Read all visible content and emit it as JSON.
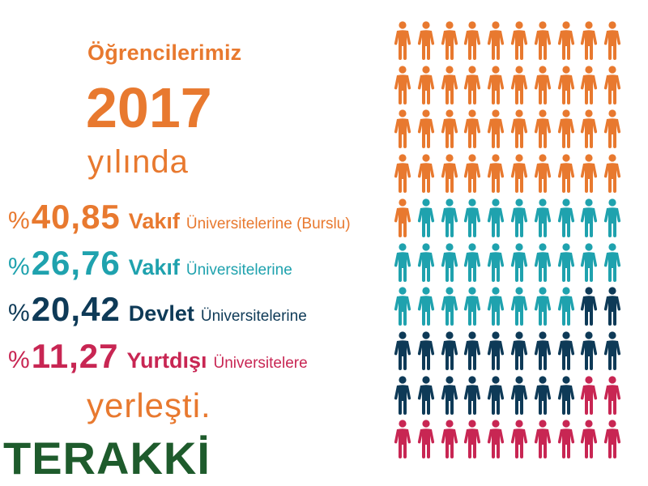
{
  "header": {
    "title": "Öğrencilerimiz",
    "year": "2017",
    "year_suffix": "yılında"
  },
  "stats": [
    {
      "sign": "%",
      "value": "40,85",
      "type": "Vakıf",
      "desc": "Üniversitelerine (Burslu)",
      "color": "#e8792f"
    },
    {
      "sign": "%",
      "value": "26,76",
      "type": "Vakıf",
      "desc": "Üniversitelerine",
      "color": "#1fa2ae"
    },
    {
      "sign": "%",
      "value": "20,42",
      "type": "Devlet",
      "desc": "Üniversitelerine",
      "color": "#0e3a57"
    },
    {
      "sign": "%",
      "value": "11,27",
      "type": "Yurtdışı",
      "desc": "Üniversitelere",
      "color": "#c82653"
    }
  ],
  "closing": "yerleşti.",
  "logo": "TERAKKİ",
  "chart_data": {
    "type": "pictogram",
    "grid": {
      "rows": 10,
      "cols": 10
    },
    "series": [
      {
        "name": "Vakıf Üniversitelerine (Burslu)",
        "value": 40.85,
        "icons": 41,
        "color": "#e8792f"
      },
      {
        "name": "Vakıf Üniversitelerine",
        "value": 26.76,
        "icons": 27,
        "color": "#1fa2ae"
      },
      {
        "name": "Devlet Üniversitelerine",
        "value": 20.42,
        "icons": 20,
        "color": "#0e3a57"
      },
      {
        "name": "Yurtdışı Üniversitelere",
        "value": 11.27,
        "icons": 12,
        "color": "#c82653"
      }
    ]
  }
}
